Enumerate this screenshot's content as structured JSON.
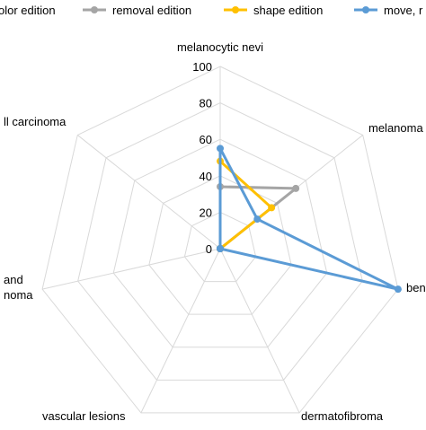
{
  "chart_data": {
    "type": "radar",
    "categories": [
      "melanocytic nevi",
      "melanoma",
      "benign keratosis",
      "dermatofibroma",
      "vascular lesions",
      "actinic keratoses and intraepithelial carcinoma",
      "basal cell carcinoma"
    ],
    "visible_category_labels": [
      "melanocytic nevi",
      "melanoma",
      "ben",
      "dermatofibroma",
      "vascular lesions",
      "and\nnoma",
      "ll carcinoma"
    ],
    "rlim": [
      0,
      100
    ],
    "ticks": [
      "0",
      "20",
      "40",
      "60",
      "80",
      "100"
    ],
    "tick_values": [
      0,
      20,
      40,
      60,
      80,
      100
    ],
    "grid": true,
    "legend_position": "top",
    "legend": [
      "olor edition",
      "removal edition",
      "shape edition",
      "move, r"
    ],
    "series": [
      {
        "name": "olor edition",
        "color": "#ed7d31",
        "values": [
          0,
          0,
          0,
          0,
          0,
          0,
          0
        ]
      },
      {
        "name": "removal edition",
        "color": "#a5a5a5",
        "values": [
          34,
          53,
          0,
          0,
          0,
          0,
          0
        ]
      },
      {
        "name": "shape edition",
        "color": "#ffc000",
        "values": [
          48,
          36,
          0,
          0,
          0,
          0,
          0
        ]
      },
      {
        "name": "move, r",
        "color": "#5b9bd5",
        "values": [
          55,
          26,
          100,
          0,
          0,
          0,
          0
        ]
      }
    ]
  }
}
